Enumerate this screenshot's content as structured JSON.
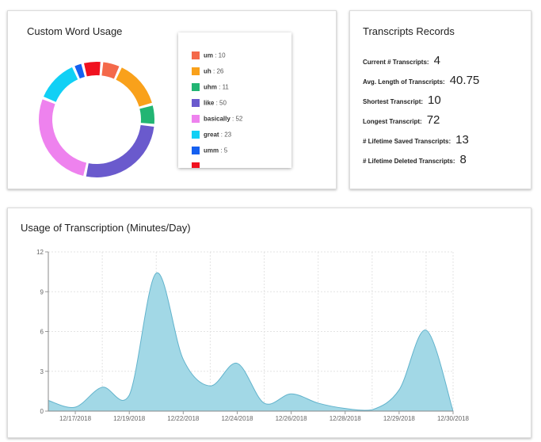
{
  "words_card": {
    "title": "Custom Word Usage"
  },
  "records_card": {
    "title": "Transcripts Records",
    "rows": [
      {
        "label": "Current # Transcripts:",
        "value": "4"
      },
      {
        "label": "Avg. Length of Transcripts:",
        "value": "40.75"
      },
      {
        "label": "Shortest Transcript:",
        "value": "10"
      },
      {
        "label": "Longest Transcript:",
        "value": "72"
      },
      {
        "label": "# Lifetime Saved Transcripts:",
        "value": "13"
      },
      {
        "label": "# Lifetime Deleted Transcripts:",
        "value": "8"
      }
    ]
  },
  "usage_card": {
    "title": "Usage of Transcription (Minutes/Day)"
  },
  "chart_data": [
    {
      "type": "pie",
      "variant": "donut",
      "title": "Custom Word Usage",
      "legend_position": "right",
      "slices": [
        {
          "label": "um",
          "value": 10,
          "color": "#f4694a"
        },
        {
          "label": "uh",
          "value": 26,
          "color": "#f9a11b"
        },
        {
          "label": "uhm",
          "value": 11,
          "color": "#22b573"
        },
        {
          "label": "like",
          "value": 50,
          "color": "#6a5acd"
        },
        {
          "label": "basically",
          "value": 52,
          "color": "#ee82ee"
        },
        {
          "label": "great",
          "value": 23,
          "color": "#11d0f5"
        },
        {
          "label": "umm",
          "value": 5,
          "color": "#1560f0"
        },
        {
          "label": "",
          "value": 10,
          "color": "#f0111f"
        }
      ]
    },
    {
      "type": "area",
      "title": "Usage of Transcription (Minutes/Day)",
      "xlabel": "",
      "ylabel": "",
      "ylim": [
        0,
        12
      ],
      "yticks": [
        0,
        3,
        6,
        9,
        12
      ],
      "grid": true,
      "fill_color": "#a2d8e6",
      "line_color": "#62b3cc",
      "xlim": [
        0,
        15
      ],
      "xticks": [
        {
          "x": 1,
          "label": "12/17/2018"
        },
        {
          "x": 3,
          "label": "12/19/2018"
        },
        {
          "x": 5,
          "label": "12/22/2018"
        },
        {
          "x": 7,
          "label": "12/24/2018"
        },
        {
          "x": 9,
          "label": "12/26/2018"
        },
        {
          "x": 11,
          "label": "12/28/2018"
        },
        {
          "x": 13,
          "label": "12/29/2018"
        },
        {
          "x": 15,
          "label": "12/30/2018"
        }
      ],
      "x": [
        0,
        1,
        2,
        3,
        4,
        5,
        6,
        7,
        8,
        9,
        10,
        11,
        12,
        13,
        14,
        15
      ],
      "values": [
        0.8,
        0.3,
        1.8,
        1.2,
        10.4,
        3.9,
        1.9,
        3.6,
        0.6,
        1.3,
        0.6,
        0.2,
        0.1,
        1.6,
        6.1,
        0.0
      ]
    }
  ]
}
